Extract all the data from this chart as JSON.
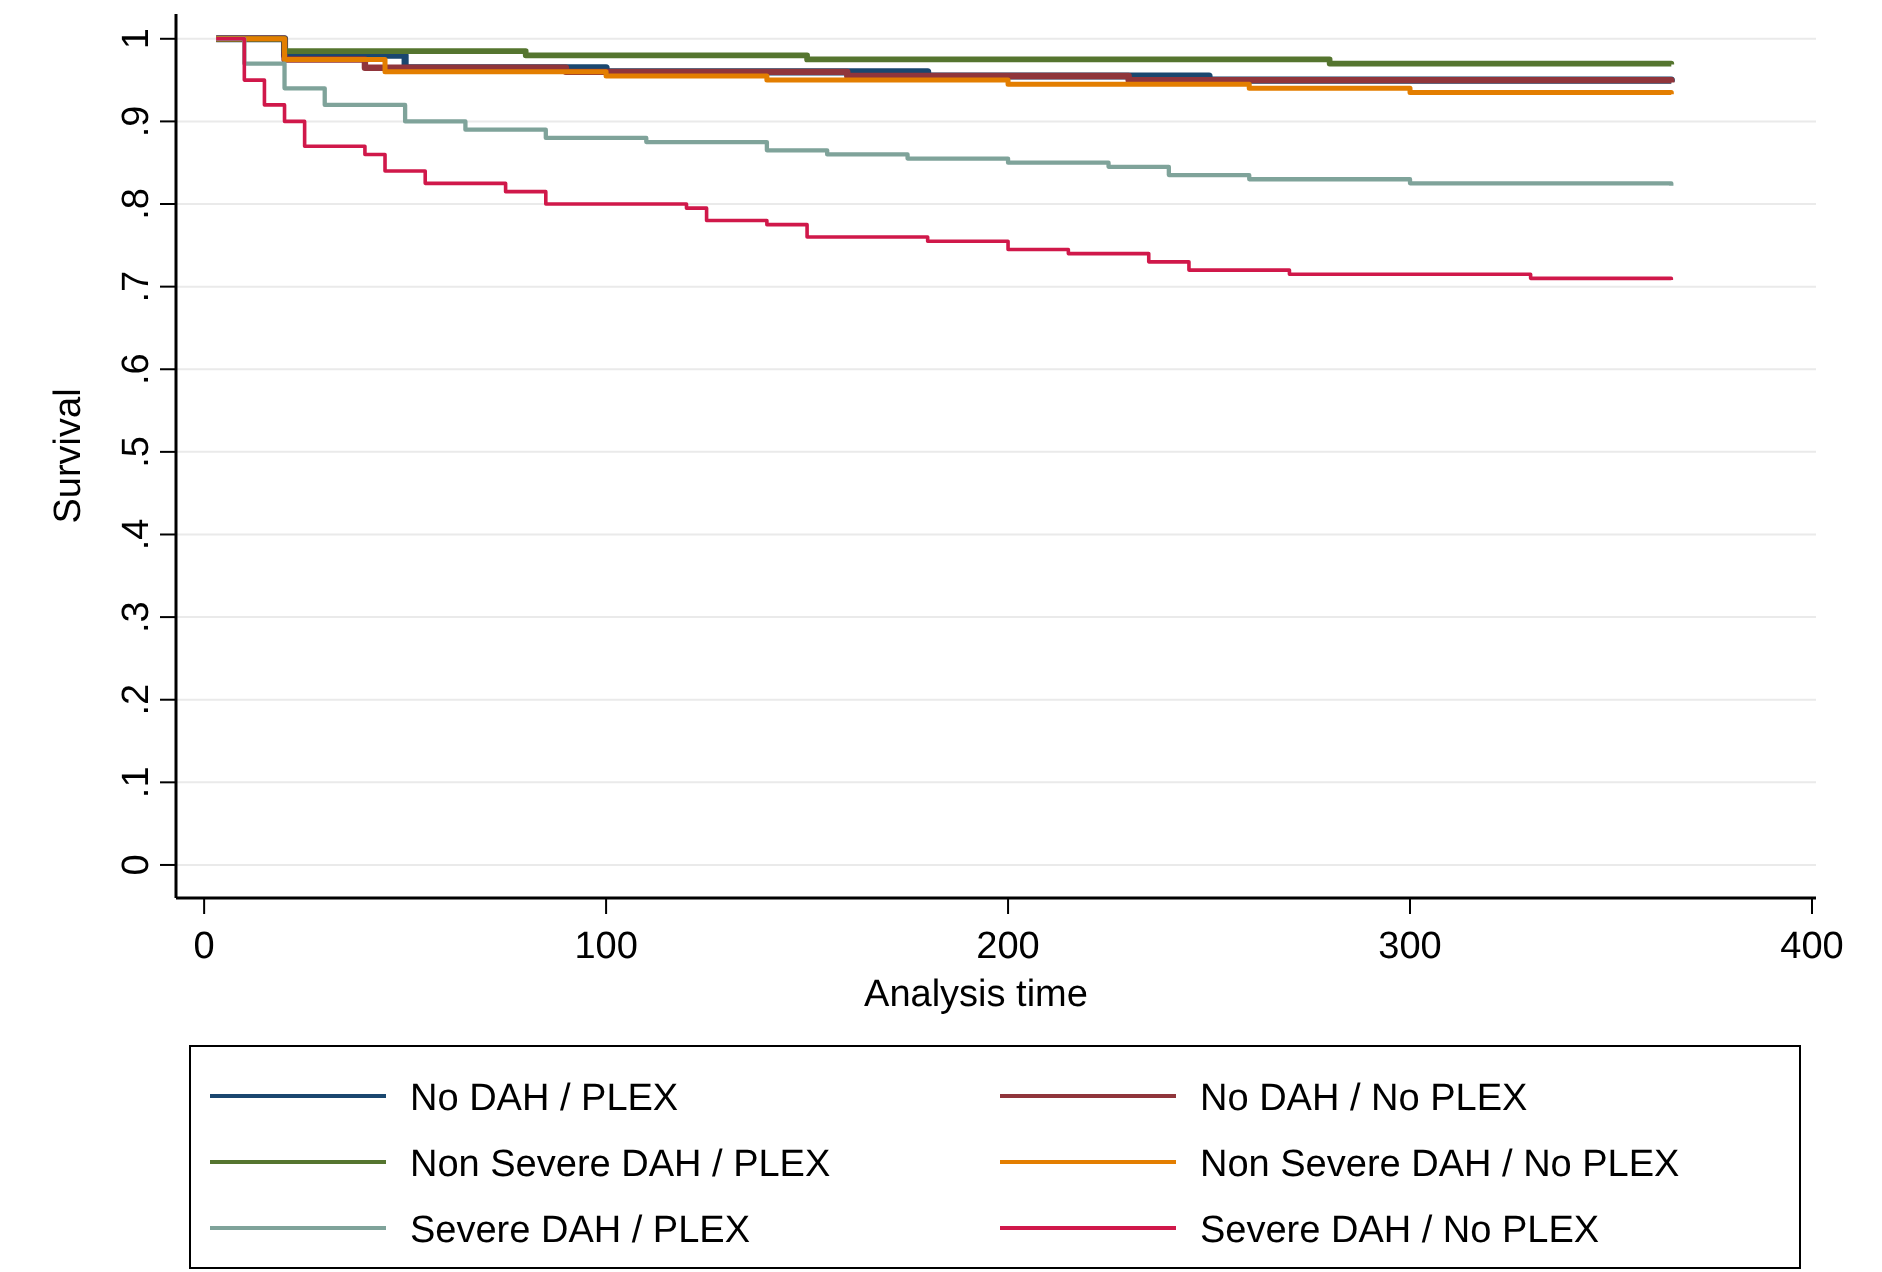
{
  "chart_data": {
    "type": "step",
    "xlabel": "Analysis time",
    "ylabel": "Survival",
    "xlim": [
      -7,
      401
    ],
    "ylim": [
      -0.04,
      1.03
    ],
    "xticks": [
      0,
      100,
      200,
      300,
      400
    ],
    "yticks": [
      {
        "value": 0,
        "label": "0"
      },
      {
        "value": 0.1,
        "label": ".1"
      },
      {
        "value": 0.2,
        "label": ".2"
      },
      {
        "value": 0.3,
        "label": ".3"
      },
      {
        "value": 0.4,
        "label": ".4"
      },
      {
        "value": 0.5,
        "label": ".5"
      },
      {
        "value": 0.6,
        "label": ".6"
      },
      {
        "value": 0.7,
        "label": ".7"
      },
      {
        "value": 0.8,
        "label": ".8"
      },
      {
        "value": 0.9,
        "label": ".9"
      },
      {
        "value": 1,
        "label": "1"
      }
    ],
    "grid": "y",
    "legend": "bottom",
    "marker": "none",
    "line_style": "solid",
    "series": [
      {
        "name": "No DAH / PLEX",
        "color": "#1a476f",
        "x": [
          3,
          20,
          50,
          100,
          180,
          250,
          365
        ],
        "values": [
          1,
          0.98,
          0.965,
          0.96,
          0.955,
          0.95,
          0.948
        ]
      },
      {
        "name": "No DAH / No PLEX",
        "color": "#90353b",
        "x": [
          3,
          20,
          40,
          90,
          160,
          230,
          365
        ],
        "values": [
          1,
          0.975,
          0.965,
          0.96,
          0.955,
          0.95,
          0.947
        ]
      },
      {
        "name": "Non Severe DAH / PLEX",
        "color": "#55752f",
        "x": [
          3,
          20,
          80,
          150,
          280,
          365
        ],
        "values": [
          1,
          0.985,
          0.98,
          0.975,
          0.97,
          0.969
        ]
      },
      {
        "name": "Non Severe DAH / No PLEX",
        "color": "#e37e00",
        "x": [
          3,
          20,
          45,
          100,
          140,
          200,
          260,
          300,
          365
        ],
        "values": [
          1,
          0.975,
          0.96,
          0.955,
          0.95,
          0.945,
          0.94,
          0.935,
          0.933
        ]
      },
      {
        "name": "Severe DAH / PLEX",
        "color": "#7fa39a",
        "x": [
          3,
          10,
          20,
          30,
          50,
          65,
          85,
          110,
          140,
          155,
          175,
          200,
          225,
          240,
          260,
          300,
          365
        ],
        "values": [
          1,
          0.97,
          0.94,
          0.92,
          0.9,
          0.89,
          0.88,
          0.875,
          0.865,
          0.86,
          0.855,
          0.85,
          0.845,
          0.835,
          0.83,
          0.825,
          0.822
        ]
      },
      {
        "name": "Severe DAH / No PLEX",
        "color": "#d0184a",
        "x": [
          3,
          10,
          15,
          20,
          25,
          40,
          45,
          55,
          75,
          85,
          120,
          125,
          140,
          150,
          180,
          200,
          215,
          235,
          245,
          270,
          330,
          365
        ],
        "values": [
          1,
          0.95,
          0.92,
          0.9,
          0.87,
          0.86,
          0.84,
          0.825,
          0.815,
          0.8,
          0.795,
          0.78,
          0.775,
          0.76,
          0.755,
          0.745,
          0.74,
          0.73,
          0.72,
          0.715,
          0.71,
          0.708
        ]
      }
    ]
  }
}
